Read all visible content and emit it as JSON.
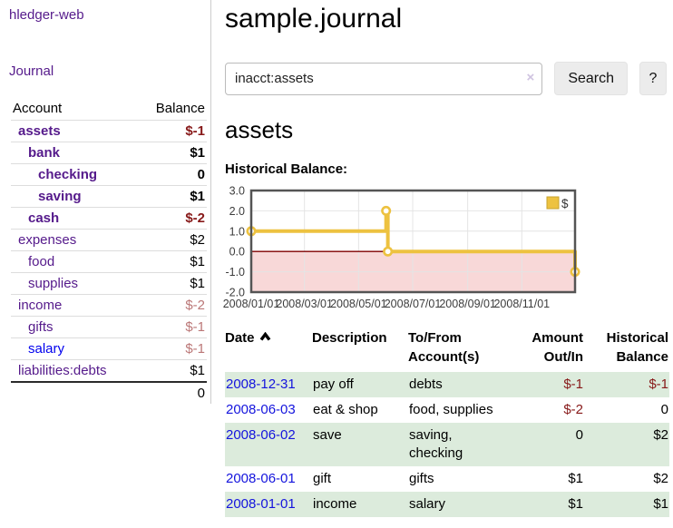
{
  "colors": {
    "link_purple": "#551a8b",
    "link_blue": "#0000ee",
    "negative_dark": "#871919",
    "negative_light": "#bb7777",
    "row_stripe_green": "#dcebdc",
    "chart_gold": "#edc240",
    "chart_negative_fill": "#f8d8d8",
    "chart_zero_line": "#7f0000"
  },
  "sidebar": {
    "app_title": "hledger-web",
    "nav": {
      "journal_label": "Journal"
    },
    "accounts": {
      "headers": {
        "account": "Account",
        "balance": "Balance"
      },
      "rows": [
        {
          "name": "assets",
          "balance": "$-1"
        },
        {
          "name": "bank",
          "balance": "$1"
        },
        {
          "name": "checking",
          "balance": "0"
        },
        {
          "name": "saving",
          "balance": "$1"
        },
        {
          "name": "cash",
          "balance": "$-2"
        },
        {
          "name": "expenses",
          "balance": "$2"
        },
        {
          "name": "food",
          "balance": "$1"
        },
        {
          "name": "supplies",
          "balance": "$1"
        },
        {
          "name": "income",
          "balance": "$-2"
        },
        {
          "name": "gifts",
          "balance": "$-1"
        },
        {
          "name": "salary",
          "balance": "$-1"
        },
        {
          "name": "liabilities:debts",
          "balance": "$1"
        }
      ],
      "total": "0"
    }
  },
  "main": {
    "title": "sample.journal",
    "search": {
      "value": "inacct:assets",
      "clear_icon": "×",
      "button_label": "Search",
      "help_label": "?"
    },
    "account_heading": "assets",
    "chart_title": "Historical Balance:"
  },
  "chart_data": {
    "type": "line",
    "title": "Historical Balance:",
    "series": [
      {
        "name": "$",
        "color": "#edc240",
        "step": true,
        "points": [
          [
            "2008-01-01",
            1
          ],
          [
            "2008-06-01",
            2
          ],
          [
            "2008-06-03",
            0
          ],
          [
            "2008-12-31",
            -1
          ]
        ]
      }
    ],
    "xrange": [
      "2008-01-01",
      "2008-12-31"
    ],
    "ylim": [
      -2,
      3
    ],
    "yticks": [
      {
        "value": 3,
        "label": "3.0"
      },
      {
        "value": 2,
        "label": "2.0"
      },
      {
        "value": 1,
        "label": "1.0"
      },
      {
        "value": 0,
        "label": "0.0"
      },
      {
        "value": -1,
        "label": "-1.0"
      },
      {
        "value": -2,
        "label": "-2.0"
      }
    ],
    "xticks": [
      {
        "date": "2008-01-01",
        "label": "2008/01/01"
      },
      {
        "date": "2008-03-01",
        "label": "2008/03/01"
      },
      {
        "date": "2008-05-01",
        "label": "2008/05/01"
      },
      {
        "date": "2008-07-01",
        "label": "2008/07/01"
      },
      {
        "date": "2008-09-01",
        "label": "2008/09/01"
      },
      {
        "date": "2008-11-01",
        "label": "2008/11/01"
      }
    ],
    "legend": {
      "position": "top-right",
      "entries": [
        {
          "label": "$",
          "color": "#edc240"
        }
      ]
    },
    "grid": true,
    "negative_region_fill": "#f8d8d8",
    "zero_line_color": "#7f0000"
  },
  "register": {
    "headers": {
      "date": "Date",
      "description": "Description",
      "accounts": "To/From Account(s)",
      "amount": "Amount Out/In",
      "balance": "Historical Balance"
    },
    "rows": [
      {
        "date": "2008-12-31",
        "description": "pay off",
        "accounts": "debts",
        "amount": "$-1",
        "balance": "$-1"
      },
      {
        "date": "2008-06-03",
        "description": "eat & shop",
        "accounts": "food, supplies",
        "amount": "$-2",
        "balance": "0"
      },
      {
        "date": "2008-06-02",
        "description": "save",
        "accounts": "saving, checking",
        "amount": "0",
        "balance": "$2"
      },
      {
        "date": "2008-06-01",
        "description": "gift",
        "accounts": "gifts",
        "amount": "$1",
        "balance": "$2"
      },
      {
        "date": "2008-01-01",
        "description": "income",
        "accounts": "salary",
        "amount": "$1",
        "balance": "$1"
      }
    ]
  }
}
